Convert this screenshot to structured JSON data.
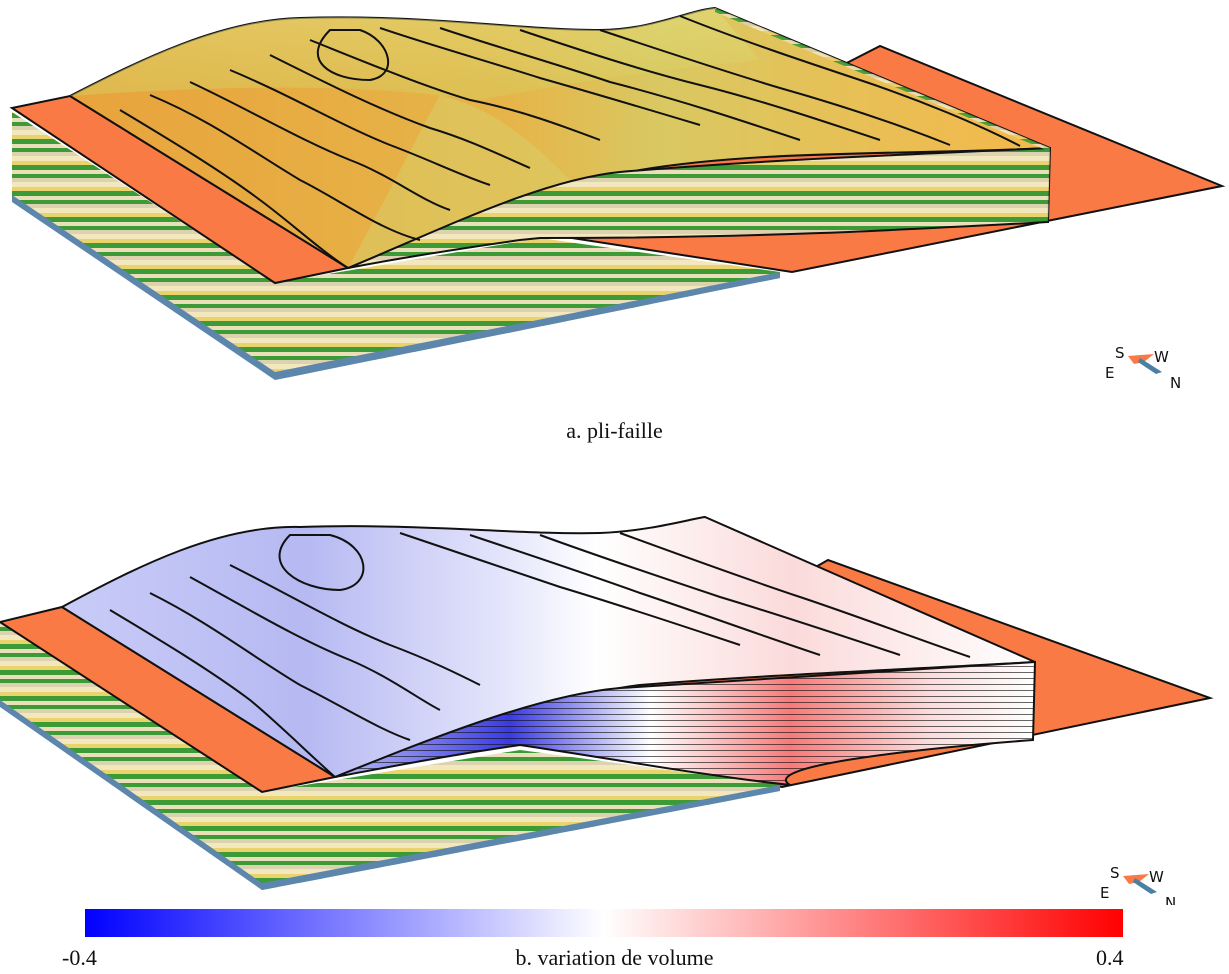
{
  "panels": {
    "a": {
      "caption": "a. pli-faille"
    },
    "b": {
      "caption": "b. variation de volume"
    }
  },
  "colorbar": {
    "min_label": "-0.4",
    "max_label": "0.4",
    "colors": [
      "#0000ff",
      "#ffffff",
      "#ff0000"
    ]
  },
  "compass": {
    "south": "S",
    "west": "W",
    "east": "E",
    "north": "N"
  },
  "colors": {
    "base_orange": "#f97a45",
    "layer_cream": "#eadfb8",
    "layer_green": "#3c9b36",
    "layer_blue": "#5d86ad",
    "layer_yellow": "#e3cf6a",
    "surface_orange": "#f0a43a",
    "surface_yellow": "#dccd63"
  }
}
